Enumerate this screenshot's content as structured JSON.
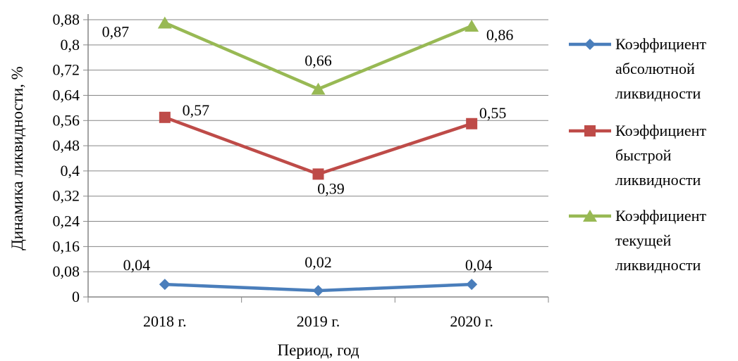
{
  "chart_data": {
    "type": "line",
    "title": "",
    "xlabel": "Период, год",
    "ylabel": "Динамика ликвидности, %",
    "categories": [
      "2018 г.",
      "2019 г.",
      "2020 г."
    ],
    "ylim": [
      0,
      0.88
    ],
    "yticks": [
      "0",
      "0,08",
      "0,16",
      "0,24",
      "0,32",
      "0,4",
      "0,48",
      "0,56",
      "0,64",
      "0,72",
      "0,8",
      "0,88"
    ],
    "grid": true,
    "legend_position": "right",
    "series": [
      {
        "name_lines": [
          "Коэффициент",
          "абсолютной",
          "ликвидности"
        ],
        "values": [
          0.04,
          0.02,
          0.04
        ],
        "labels": [
          "0,04",
          "0,02",
          "0,04"
        ],
        "color": "#4a7ebb",
        "marker": "diamond"
      },
      {
        "name_lines": [
          "Коэффициент",
          "быстрой",
          "ликвидности"
        ],
        "values": [
          0.57,
          0.39,
          0.55
        ],
        "labels": [
          "0,57",
          "0,39",
          "0,55"
        ],
        "color": "#be4b48",
        "marker": "square"
      },
      {
        "name_lines": [
          "Коэффициент",
          "текущей",
          "ликвидности"
        ],
        "values": [
          0.87,
          0.66,
          0.86
        ],
        "labels": [
          "0,87",
          "0,66",
          "0,86"
        ],
        "color": "#98b954",
        "marker": "triangle"
      }
    ]
  }
}
